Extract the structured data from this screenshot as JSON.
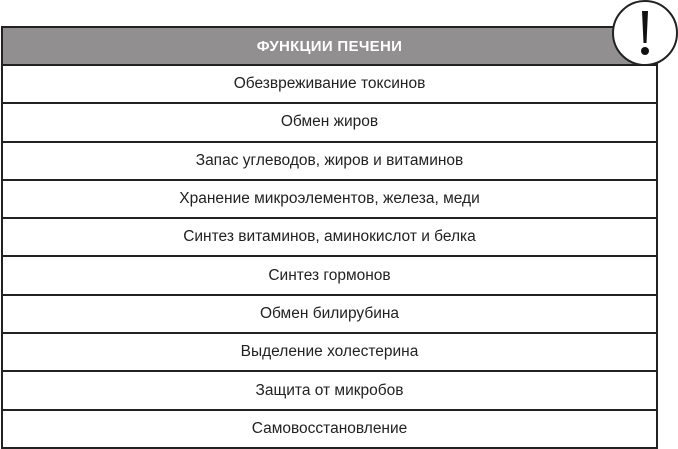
{
  "table": {
    "title": "ФУНКЦИИ ПЕЧЕНИ",
    "header_color": "#918f8f",
    "rows": [
      "Обезвреживание токсинов",
      "Обмен жиров",
      "Запас углеводов, жиров и витаминов",
      "Хранение микроэлементов, железа, меди",
      "Синтез витаминов, аминокислот и белка",
      "Синтез гормонов",
      "Обмен билирубина",
      "Выделение холестерина",
      "Защита от микробов",
      "Самовосстановление"
    ]
  },
  "icon": "exclamation-icon"
}
